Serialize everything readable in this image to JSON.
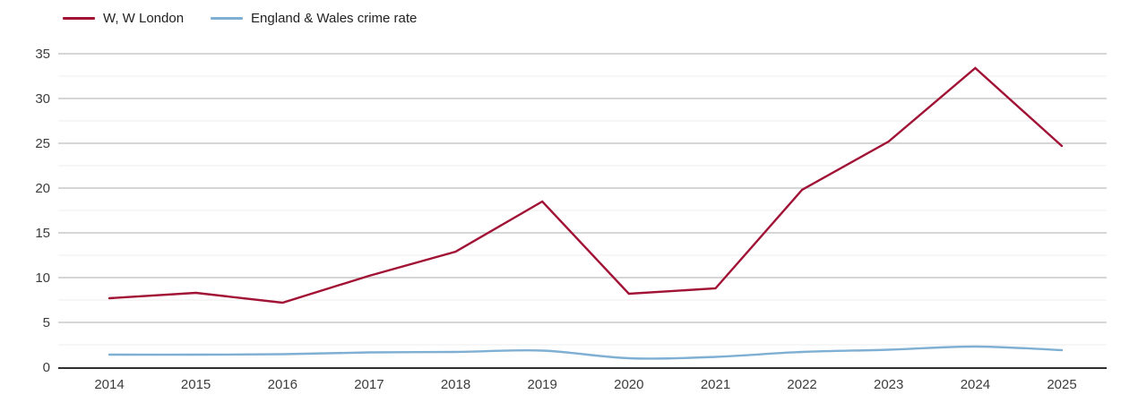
{
  "legend": {
    "items": [
      {
        "label": "W, W London",
        "color": "#a11235"
      },
      {
        "label": "England & Wales crime rate",
        "color": "#7fb0d4"
      }
    ]
  },
  "chart_data": {
    "type": "line",
    "title": "",
    "xlabel": "",
    "ylabel": "",
    "x": [
      "2014",
      "2015",
      "2016",
      "2017",
      "2018",
      "2019",
      "2020",
      "2021",
      "2022",
      "2023",
      "2024",
      "2025"
    ],
    "series": [
      {
        "name": "W, W London",
        "color": "#a11235",
        "smooth": false,
        "values": [
          7.7,
          8.3,
          7.2,
          10.2,
          12.9,
          18.5,
          8.2,
          8.8,
          19.8,
          25.2,
          33.4,
          24.7
        ]
      },
      {
        "name": "England & Wales crime rate",
        "color": "#7fb0d4",
        "smooth": true,
        "values": [
          1.4,
          1.4,
          1.45,
          1.65,
          1.7,
          1.85,
          1.0,
          1.15,
          1.7,
          1.95,
          2.3,
          1.9
        ]
      }
    ],
    "ylim": [
      0,
      35
    ],
    "yticks_major": [
      0,
      5,
      10,
      15,
      20,
      25,
      30,
      35
    ],
    "yticks_minor": [
      2.5,
      7.5,
      12.5,
      17.5,
      22.5,
      27.5,
      32.5
    ],
    "grid": true,
    "legend_position": "top-left"
  },
  "style_colors": {
    "background": "#ffffff",
    "major_grid": "#c9c9c9",
    "minor_grid": "#ececec",
    "axis_line": "#2f2f2f",
    "tick_text": "#3c3c3c"
  }
}
